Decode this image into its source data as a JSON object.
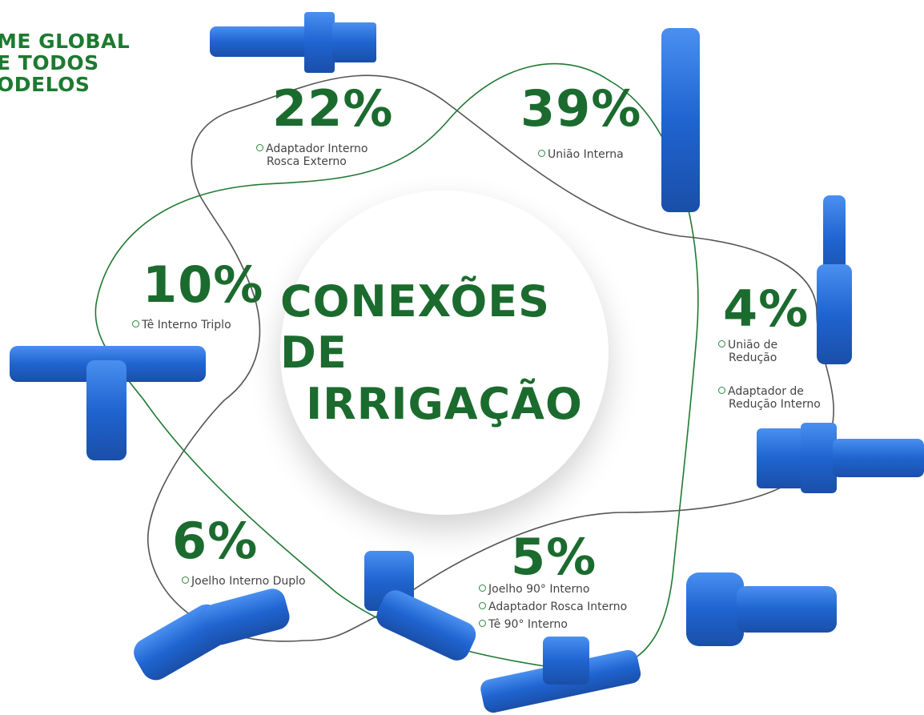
{
  "header": {
    "title_lines": [
      "ME GLOBAL",
      "E TODOS",
      "ODELOS"
    ]
  },
  "center": {
    "lines": [
      "CONEXÕES DE",
      "IRRIGAÇÃO"
    ]
  },
  "segments": [
    {
      "percent": "22%",
      "items": [
        [
          "Adaptador Interno",
          "Rosca Externo"
        ]
      ]
    },
    {
      "percent": "39%",
      "items": [
        [
          "União Interna"
        ]
      ]
    },
    {
      "percent": "10%",
      "items": [
        [
          "Tê Interno Triplo"
        ]
      ]
    },
    {
      "percent": "4%",
      "items": [
        [
          "União de",
          "Redução"
        ],
        [
          "Adaptador de",
          "Redução Interno"
        ]
      ]
    },
    {
      "percent": "6%",
      "items": [
        [
          "Joelho Interno Duplo"
        ]
      ]
    },
    {
      "percent": "5%",
      "items": [
        [
          "Joelho 90° Interno"
        ],
        [
          "Adaptador Rosca Interno"
        ],
        [
          "Tê 90° Interno"
        ]
      ]
    }
  ]
}
